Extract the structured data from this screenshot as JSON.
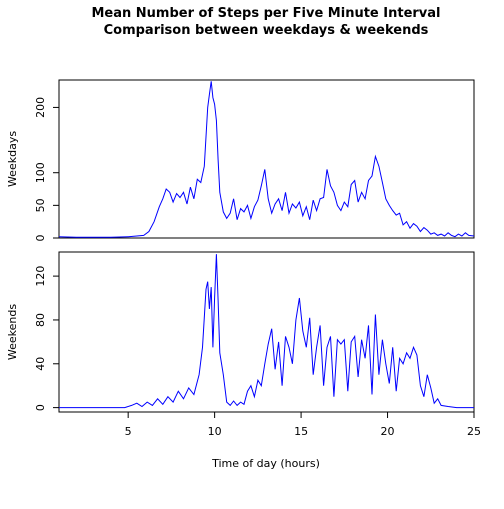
{
  "chart_data": {
    "type": "line",
    "title": [
      "Mean Number of Steps per Five Minute Interval",
      "Comparison between weekdays & weekends"
    ],
    "xlabel": "Time of day (hours)",
    "xlim": [
      1,
      25
    ],
    "x_ticks": [
      5,
      10,
      15,
      20,
      25
    ],
    "line_color": "#0000ff",
    "grid": false,
    "panels": [
      {
        "name": "weekdays",
        "ylabel": "Weekdays",
        "ylim": [
          0,
          242
        ],
        "y_ticks": [
          0,
          50,
          100,
          200
        ],
        "x": [
          1.0,
          2.0,
          3.0,
          4.0,
          5.0,
          5.5,
          5.9,
          6.2,
          6.5,
          6.8,
          7.0,
          7.2,
          7.4,
          7.6,
          7.8,
          8.0,
          8.2,
          8.4,
          8.6,
          8.8,
          9.0,
          9.2,
          9.4,
          9.6,
          9.7,
          9.8,
          9.9,
          10.0,
          10.1,
          10.2,
          10.3,
          10.5,
          10.7,
          10.9,
          11.1,
          11.3,
          11.5,
          11.7,
          11.9,
          12.1,
          12.3,
          12.5,
          12.7,
          12.9,
          13.1,
          13.3,
          13.5,
          13.7,
          13.9,
          14.1,
          14.3,
          14.5,
          14.7,
          14.9,
          15.1,
          15.3,
          15.5,
          15.7,
          15.9,
          16.1,
          16.3,
          16.5,
          16.7,
          16.9,
          17.1,
          17.3,
          17.5,
          17.7,
          17.9,
          18.1,
          18.3,
          18.5,
          18.7,
          18.9,
          19.1,
          19.3,
          19.5,
          19.7,
          19.9,
          20.1,
          20.3,
          20.5,
          20.7,
          20.9,
          21.1,
          21.3,
          21.5,
          21.7,
          21.9,
          22.1,
          22.3,
          22.5,
          22.7,
          22.9,
          23.1,
          23.3,
          23.5,
          23.7,
          23.9,
          24.1,
          24.3,
          24.5,
          24.7,
          25.0
        ],
        "y": [
          2,
          1,
          1,
          1,
          2,
          3,
          4,
          10,
          25,
          48,
          60,
          75,
          70,
          55,
          68,
          62,
          70,
          52,
          78,
          60,
          90,
          85,
          110,
          200,
          220,
          240,
          215,
          205,
          180,
          120,
          70,
          40,
          30,
          38,
          60,
          28,
          45,
          40,
          50,
          30,
          48,
          58,
          80,
          105,
          60,
          38,
          52,
          60,
          42,
          70,
          38,
          52,
          46,
          55,
          34,
          48,
          28,
          58,
          42,
          60,
          62,
          105,
          80,
          70,
          50,
          42,
          55,
          48,
          82,
          88,
          55,
          70,
          60,
          88,
          95,
          125,
          110,
          85,
          60,
          50,
          42,
          35,
          38,
          20,
          25,
          15,
          22,
          18,
          10,
          16,
          12,
          6,
          8,
          4,
          6,
          3,
          8,
          4,
          2,
          6,
          3,
          8,
          4,
          3
        ]
      },
      {
        "name": "weekends",
        "ylabel": "Weekends",
        "ylim": [
          -4,
          142
        ],
        "y_ticks": [
          0,
          40,
          80,
          120
        ],
        "x": [
          1.0,
          2.0,
          3.0,
          4.0,
          4.8,
          5.2,
          5.5,
          5.8,
          6.1,
          6.4,
          6.7,
          7.0,
          7.3,
          7.6,
          7.9,
          8.2,
          8.5,
          8.8,
          9.1,
          9.3,
          9.5,
          9.6,
          9.7,
          9.8,
          9.9,
          10.0,
          10.1,
          10.2,
          10.3,
          10.5,
          10.7,
          10.9,
          11.1,
          11.3,
          11.5,
          11.7,
          11.9,
          12.1,
          12.3,
          12.5,
          12.7,
          12.9,
          13.1,
          13.3,
          13.5,
          13.7,
          13.9,
          14.1,
          14.3,
          14.5,
          14.7,
          14.9,
          15.1,
          15.3,
          15.5,
          15.7,
          15.9,
          16.1,
          16.3,
          16.5,
          16.7,
          16.9,
          17.1,
          17.3,
          17.5,
          17.7,
          17.9,
          18.1,
          18.3,
          18.5,
          18.7,
          18.9,
          19.1,
          19.3,
          19.5,
          19.7,
          19.9,
          20.1,
          20.3,
          20.5,
          20.7,
          20.9,
          21.1,
          21.3,
          21.5,
          21.7,
          21.9,
          22.1,
          22.3,
          22.5,
          22.7,
          22.9,
          23.1,
          23.5,
          24.0,
          25.0
        ],
        "y": [
          0,
          0,
          0,
          0,
          0,
          2,
          4,
          1,
          5,
          2,
          8,
          3,
          10,
          5,
          15,
          8,
          18,
          12,
          30,
          55,
          108,
          115,
          90,
          110,
          55,
          100,
          140,
          98,
          50,
          30,
          5,
          2,
          6,
          2,
          5,
          3,
          15,
          20,
          10,
          25,
          20,
          40,
          58,
          72,
          35,
          60,
          20,
          65,
          55,
          40,
          80,
          100,
          70,
          55,
          82,
          30,
          55,
          75,
          20,
          55,
          65,
          10,
          62,
          58,
          62,
          15,
          60,
          65,
          28,
          62,
          45,
          75,
          12,
          85,
          30,
          62,
          40,
          22,
          55,
          15,
          45,
          40,
          50,
          45,
          55,
          48,
          20,
          10,
          30,
          18,
          4,
          8,
          2,
          1,
          0,
          0
        ]
      }
    ]
  }
}
